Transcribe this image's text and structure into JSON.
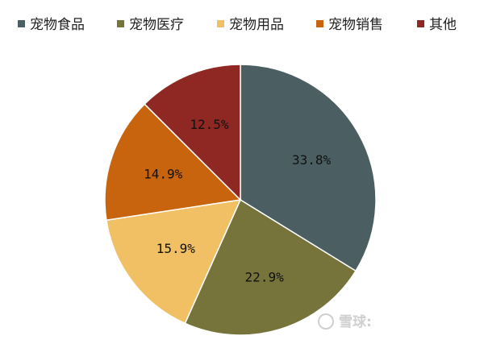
{
  "chart_data": {
    "type": "pie",
    "categories": [
      "宠物食品",
      "宠物医疗",
      "宠物用品",
      "宠物销售",
      "其他"
    ],
    "values": [
      33.8,
      22.9,
      15.9,
      14.9,
      12.5
    ],
    "labels": [
      "33.8%",
      "22.9%",
      "15.9%",
      "14.9%",
      "12.5%"
    ],
    "colors": [
      "#4b5f62",
      "#76743a",
      "#f2c064",
      "#c7640d",
      "#8f2722"
    ],
    "start_angle_deg": 0,
    "direction": "clockwise",
    "legend_position": "top"
  },
  "watermark": {
    "text": "雪球:"
  }
}
